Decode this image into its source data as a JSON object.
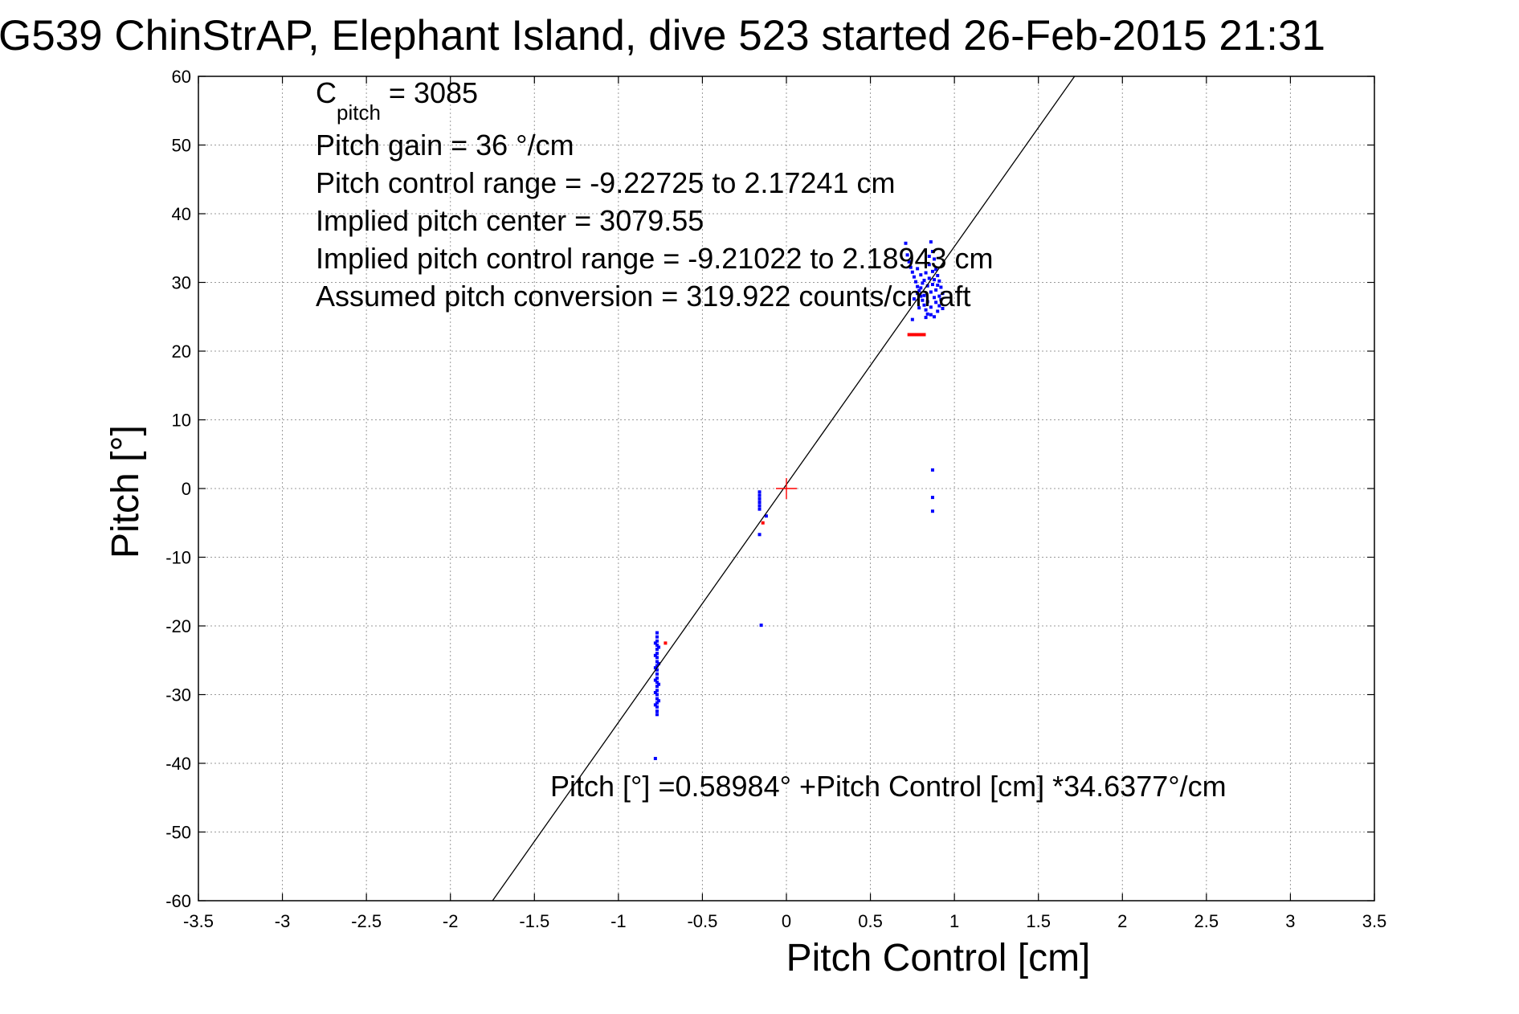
{
  "colors": {
    "upcast": "#0000ff",
    "downcast": "#ff0000",
    "fit_line": "#000000",
    "center_marker": "#ff0000",
    "grid": "#9a9a9a"
  },
  "chart_data": {
    "type": "scatter",
    "title": "G539 ChinStrAP, Elephant Island, dive 523 started 26-Feb-2015 21:31",
    "xlabel": "Pitch Control [cm]",
    "ylabel": "Pitch [°]",
    "xlim": [
      -3.5,
      3.5
    ],
    "ylim": [
      -60,
      60
    ],
    "grid": true,
    "x_ticks": [
      -3.5,
      -3,
      -2.5,
      -2,
      -1.5,
      -1,
      -0.5,
      0,
      0.5,
      1,
      1.5,
      2,
      2.5,
      3,
      3.5
    ],
    "x_tick_labels": [
      "-3.5",
      "-3",
      "-2.5",
      "-2",
      "-1.5",
      "-1",
      "-0.5",
      "0",
      "0.5",
      "1",
      "1.5",
      "2",
      "2.5",
      "3",
      "3.5"
    ],
    "y_ticks": [
      60,
      50,
      40,
      30,
      20,
      10,
      0,
      -10,
      -20,
      -30,
      -40,
      -50,
      -60
    ],
    "y_tick_labels": [
      "60",
      "50",
      "40",
      "30",
      "20",
      "10",
      "0",
      "-10",
      "-20",
      "-30",
      "-40",
      "-50",
      "-60"
    ],
    "annotations": {
      "cpitch_label": "C",
      "cpitch_subscript": "pitch",
      "cpitch_value": " = 3085",
      "lines": [
        "Pitch gain = 36 °/cm",
        "Pitch control range = -9.22725 to 2.17241 cm",
        "Implied pitch center = 3079.55",
        "Implied pitch control range = -9.21022 to 2.18943 cm",
        "Assumed pitch conversion = 319.922 counts/cm aft"
      ],
      "fit_equation": "Pitch [°] =0.58984° +Pitch Control [cm] *34.6377°/cm"
    },
    "fit": {
      "intercept": 0.58984,
      "slope": 34.6377
    },
    "center_marker": {
      "x": 0,
      "y": 0
    },
    "series": [
      {
        "color_key": "upcast",
        "points": [
          [
            -0.77,
            -21.0
          ],
          [
            -0.77,
            -21.6
          ],
          [
            -0.77,
            -22.2
          ],
          [
            -0.77,
            -22.8
          ],
          [
            -0.77,
            -23.4
          ],
          [
            -0.77,
            -24.0
          ],
          [
            -0.77,
            -24.6
          ],
          [
            -0.77,
            -25.2
          ],
          [
            -0.77,
            -25.8
          ],
          [
            -0.77,
            -26.4
          ],
          [
            -0.77,
            -27.0
          ],
          [
            -0.77,
            -27.6
          ],
          [
            -0.77,
            -28.2
          ],
          [
            -0.77,
            -28.8
          ],
          [
            -0.77,
            -29.4
          ],
          [
            -0.77,
            -30.0
          ],
          [
            -0.77,
            -30.6
          ],
          [
            -0.77,
            -31.2
          ],
          [
            -0.77,
            -31.8
          ],
          [
            -0.77,
            -32.4
          ],
          [
            -0.77,
            -32.9
          ],
          [
            -0.78,
            -22.5
          ],
          [
            -0.78,
            -24.3
          ],
          [
            -0.78,
            -26.1
          ],
          [
            -0.78,
            -27.9
          ],
          [
            -0.78,
            -29.7
          ],
          [
            -0.78,
            -31.5
          ],
          [
            -0.76,
            -23.1
          ],
          [
            -0.76,
            -25.5
          ],
          [
            -0.76,
            -28.5
          ],
          [
            -0.76,
            -30.9
          ],
          [
            -0.78,
            -39.3
          ],
          [
            -0.16,
            -0.5
          ],
          [
            -0.16,
            -1.0
          ],
          [
            -0.16,
            -1.5
          ],
          [
            -0.16,
            -2.0
          ],
          [
            -0.16,
            -2.5
          ],
          [
            -0.16,
            -3.0
          ],
          [
            -0.16,
            -6.7
          ],
          [
            -0.15,
            -19.9
          ],
          [
            -0.12,
            -4.0
          ],
          [
            0.87,
            2.7
          ],
          [
            0.87,
            -1.3
          ],
          [
            0.87,
            -3.3
          ],
          [
            0.71,
            35.7
          ],
          [
            0.72,
            34.0
          ],
          [
            0.73,
            33.0
          ],
          [
            0.74,
            32.2
          ],
          [
            0.75,
            31.5
          ],
          [
            0.76,
            30.8
          ],
          [
            0.77,
            30.1
          ],
          [
            0.78,
            29.4
          ],
          [
            0.79,
            28.8
          ],
          [
            0.8,
            28.0
          ],
          [
            0.81,
            27.4
          ],
          [
            0.82,
            26.7
          ],
          [
            0.83,
            26.0
          ],
          [
            0.84,
            25.4
          ],
          [
            0.86,
            35.9
          ],
          [
            0.87,
            34.5
          ],
          [
            0.88,
            33.4
          ],
          [
            0.85,
            32.6
          ],
          [
            0.89,
            31.9
          ],
          [
            0.9,
            31.0
          ],
          [
            0.91,
            30.2
          ],
          [
            0.92,
            29.3
          ],
          [
            0.93,
            28.4
          ],
          [
            0.92,
            27.5
          ],
          [
            0.91,
            26.6
          ],
          [
            0.9,
            25.8
          ],
          [
            0.88,
            25.0
          ],
          [
            0.78,
            32.0
          ],
          [
            0.8,
            31.1
          ],
          [
            0.82,
            30.3
          ],
          [
            0.84,
            29.5
          ],
          [
            0.86,
            28.6
          ],
          [
            0.88,
            27.8
          ],
          [
            0.79,
            26.3
          ],
          [
            0.81,
            29.9
          ],
          [
            0.83,
            31.4
          ],
          [
            0.85,
            30.6
          ],
          [
            0.87,
            29.7
          ],
          [
            0.89,
            28.9
          ],
          [
            0.76,
            27.6
          ],
          [
            0.78,
            28.4
          ],
          [
            0.8,
            29.2
          ],
          [
            0.82,
            28.1
          ],
          [
            0.84,
            27.2
          ],
          [
            0.86,
            26.4
          ],
          [
            0.88,
            30.4
          ],
          [
            0.9,
            29.6
          ],
          [
            0.85,
            33.8
          ],
          [
            0.87,
            31.6
          ],
          [
            0.89,
            27.1
          ],
          [
            0.91,
            28.0
          ],
          [
            0.75,
            24.6
          ],
          [
            0.83,
            24.9
          ],
          [
            0.86,
            25.3
          ],
          [
            0.93,
            26.2
          ]
        ]
      },
      {
        "color_key": "downcast",
        "points": [
          [
            0.73,
            22.4
          ],
          [
            0.745,
            22.4
          ],
          [
            0.76,
            22.4
          ],
          [
            0.775,
            22.4
          ],
          [
            0.79,
            22.4
          ],
          [
            0.805,
            22.4
          ],
          [
            0.82,
            22.4
          ],
          [
            -0.72,
            -22.5
          ],
          [
            -0.14,
            -5.0
          ]
        ]
      }
    ]
  }
}
